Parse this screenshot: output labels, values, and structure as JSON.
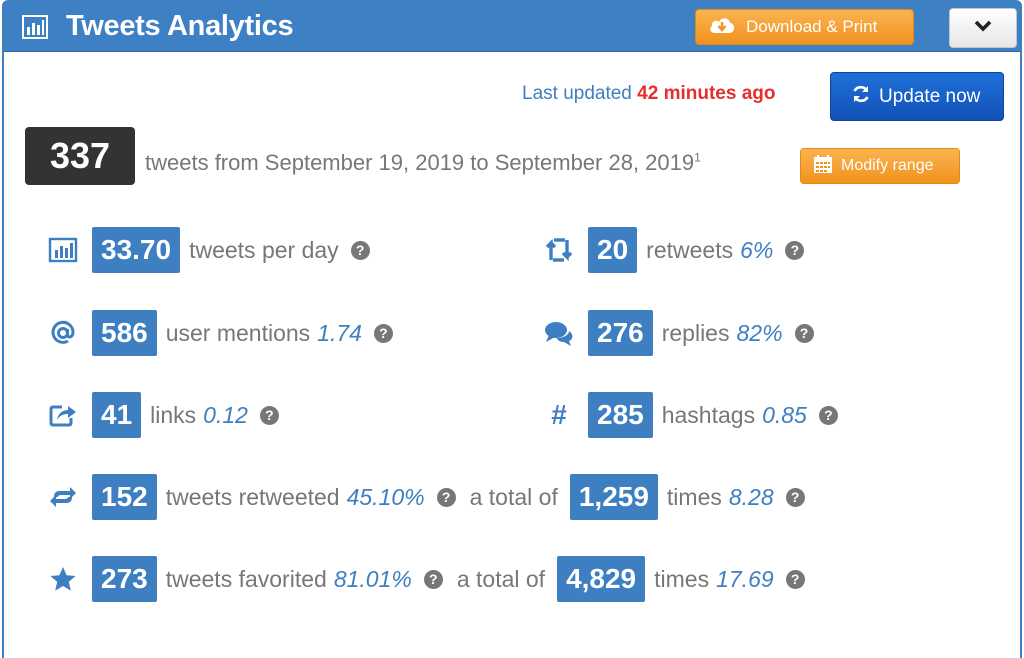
{
  "header": {
    "title": "Tweets Analytics",
    "download_label": "Download & Print",
    "icon": "bar-chart-icon",
    "dropdown_icon": "chevron-down-icon"
  },
  "status": {
    "last_updated_prefix": "Last updated",
    "last_updated_value": "42 minutes ago",
    "update_label": "Update now"
  },
  "summary": {
    "total": "337",
    "range_text": "tweets from September 19, 2019 to September 28, 2019",
    "footnote": "1",
    "modify_label": "Modify range"
  },
  "stats": {
    "per_day": {
      "value": "33.70",
      "label": "tweets per day",
      "icon": "bar-chart-icon"
    },
    "retweets": {
      "value": "20",
      "label": "retweets",
      "pct": "6%",
      "icon": "retweet-icon"
    },
    "mentions": {
      "value": "586",
      "label": "user mentions",
      "pct": "1.74",
      "icon": "at-icon"
    },
    "replies": {
      "value": "276",
      "label": "replies",
      "pct": "82%",
      "icon": "comments-icon"
    },
    "links": {
      "value": "41",
      "label": "links",
      "pct": "0.12",
      "icon": "share-icon"
    },
    "hashtags": {
      "value": "285",
      "label": "hashtags",
      "pct": "0.85",
      "icon": "hashtag-icon",
      "symbol": "#"
    },
    "retweeted": {
      "value": "152",
      "label": "tweets retweeted",
      "pct": "45.10%",
      "mid": "a total of",
      "total": "1,259",
      "times": "times",
      "ratio": "8.28",
      "icon": "retweet-small-icon"
    },
    "favorited": {
      "value": "273",
      "label": "tweets favorited",
      "pct": "81.01%",
      "mid": "a total of",
      "total": "4,829",
      "times": "times",
      "ratio": "17.69",
      "icon": "star-icon"
    }
  },
  "help_symbol": "?",
  "colors": {
    "header_blue": "#3d80c3",
    "accent_blue": "#3d7fc1",
    "orange": "#f0921e",
    "update_blue": "#1a63c8",
    "red": "#e52f2f",
    "dark_box": "#333333"
  }
}
